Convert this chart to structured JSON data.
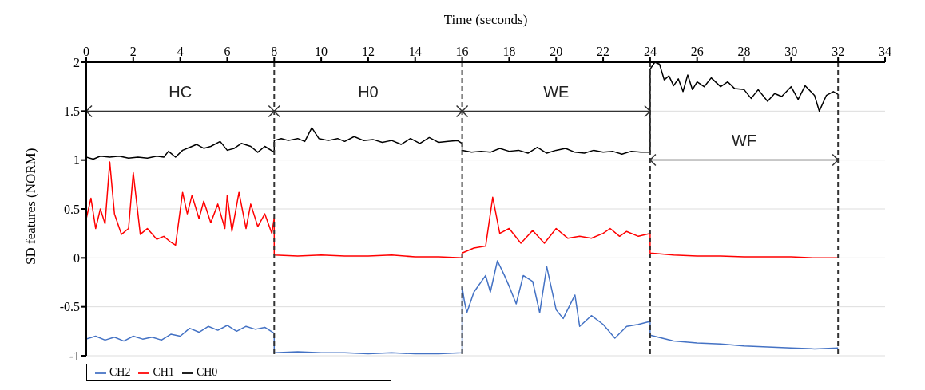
{
  "chart_data": {
    "type": "line",
    "xlabel": "Time (seconds)",
    "ylabel": "SD features (NORM)",
    "xlim": [
      0,
      34
    ],
    "xticks": [
      0,
      2,
      4,
      6,
      8,
      10,
      12,
      14,
      16,
      18,
      20,
      22,
      24,
      26,
      28,
      30,
      32,
      34
    ],
    "ylim": [
      -1,
      2
    ],
    "yticks": [
      -1,
      -0.5,
      0,
      0.5,
      1,
      1.5,
      2
    ],
    "grid": "y",
    "legend": "bottom left",
    "marker": "none",
    "line_style": "solid",
    "series": [
      {
        "name": "CH2",
        "color": "#4472c4",
        "x": [
          0,
          0.4,
          0.8,
          1.2,
          1.6,
          2,
          2.4,
          2.8,
          3.2,
          3.6,
          4,
          4.4,
          4.8,
          5.2,
          5.6,
          6,
          6.4,
          6.8,
          7.2,
          7.6,
          8,
          8,
          9,
          10,
          11,
          12,
          13,
          14,
          15,
          16,
          16,
          16.1,
          16.2,
          16.5,
          17,
          17.2,
          17.5,
          17.8,
          18,
          18.3,
          18.6,
          19,
          19.3,
          19.6,
          20,
          20.3,
          20.8,
          21,
          21.5,
          22,
          22.5,
          23,
          23.5,
          24,
          24,
          25,
          26,
          27,
          28,
          29,
          30,
          31,
          32
        ],
        "values": [
          -0.83,
          -0.8,
          -0.84,
          -0.81,
          -0.85,
          -0.8,
          -0.83,
          -0.81,
          -0.84,
          -0.78,
          -0.8,
          -0.72,
          -0.76,
          -0.7,
          -0.74,
          -0.69,
          -0.75,
          -0.7,
          -0.73,
          -0.71,
          -0.77,
          -0.97,
          -0.96,
          -0.97,
          -0.97,
          -0.98,
          -0.97,
          -0.98,
          -0.98,
          -0.97,
          -0.3,
          -0.45,
          -0.56,
          -0.35,
          -0.18,
          -0.35,
          -0.03,
          -0.18,
          -0.29,
          -0.47,
          -0.18,
          -0.24,
          -0.56,
          -0.09,
          -0.53,
          -0.62,
          -0.38,
          -0.7,
          -0.59,
          -0.68,
          -0.82,
          -0.7,
          -0.68,
          -0.65,
          -0.79,
          -0.85,
          -0.87,
          -0.88,
          -0.9,
          -0.91,
          -0.92,
          -0.93,
          -0.92
        ]
      },
      {
        "name": "CH1",
        "color": "#ff0000",
        "x": [
          0,
          0.2,
          0.4,
          0.6,
          0.8,
          1,
          1.2,
          1.5,
          1.8,
          2,
          2.3,
          2.6,
          3,
          3.3,
          3.6,
          3.8,
          4.1,
          4.3,
          4.5,
          4.8,
          5,
          5.3,
          5.6,
          5.9,
          6,
          6.2,
          6.5,
          6.8,
          7,
          7.3,
          7.6,
          7.9,
          8,
          8,
          9,
          10,
          11,
          12,
          13,
          14,
          15,
          16,
          16,
          16.5,
          17,
          17.3,
          17.6,
          18,
          18.5,
          19,
          19.5,
          20,
          20.5,
          21,
          21.5,
          22,
          22.3,
          22.7,
          23,
          23.5,
          24,
          24,
          25,
          26,
          27,
          28,
          29,
          30,
          31,
          32
        ],
        "values": [
          0.4,
          0.61,
          0.3,
          0.5,
          0.35,
          0.98,
          0.45,
          0.24,
          0.3,
          0.87,
          0.24,
          0.3,
          0.19,
          0.22,
          0.16,
          0.13,
          0.67,
          0.45,
          0.64,
          0.4,
          0.58,
          0.36,
          0.55,
          0.3,
          0.64,
          0.27,
          0.67,
          0.3,
          0.55,
          0.32,
          0.45,
          0.25,
          0.41,
          0.03,
          0.02,
          0.03,
          0.02,
          0.02,
          0.03,
          0.01,
          0.01,
          0.0,
          0.05,
          0.1,
          0.12,
          0.62,
          0.25,
          0.3,
          0.15,
          0.28,
          0.15,
          0.3,
          0.2,
          0.22,
          0.2,
          0.25,
          0.3,
          0.22,
          0.27,
          0.22,
          0.25,
          0.05,
          0.03,
          0.02,
          0.02,
          0.01,
          0.01,
          0.01,
          0.0,
          0.0
        ]
      },
      {
        "name": "CH0",
        "color": "#000000",
        "x": [
          0,
          0.3,
          0.6,
          1,
          1.4,
          1.8,
          2.2,
          2.6,
          3,
          3.3,
          3.5,
          3.8,
          4.1,
          4.4,
          4.7,
          5,
          5.3,
          5.7,
          6,
          6.3,
          6.6,
          7,
          7.3,
          7.6,
          8,
          8,
          8.3,
          8.6,
          9,
          9.3,
          9.6,
          9.9,
          10.3,
          10.7,
          11,
          11.4,
          11.8,
          12.2,
          12.6,
          13,
          13.4,
          13.8,
          14.2,
          14.6,
          15,
          15.4,
          15.8,
          16,
          16,
          16.4,
          16.8,
          17.2,
          17.6,
          18,
          18.4,
          18.8,
          19.2,
          19.6,
          20,
          20.4,
          20.8,
          21.2,
          21.6,
          22,
          22.4,
          22.8,
          23.2,
          23.6,
          24,
          24,
          24.2,
          24.4,
          24.6,
          24.8,
          25,
          25.2,
          25.4,
          25.6,
          25.8,
          26,
          26.3,
          26.6,
          27,
          27.3,
          27.6,
          28,
          28.3,
          28.6,
          29,
          29.3,
          29.6,
          30,
          30.3,
          30.6,
          31,
          31.2,
          31.5,
          31.8,
          32
        ],
        "values": [
          1.03,
          1.01,
          1.04,
          1.03,
          1.04,
          1.02,
          1.03,
          1.02,
          1.04,
          1.03,
          1.09,
          1.03,
          1.1,
          1.13,
          1.16,
          1.12,
          1.14,
          1.19,
          1.1,
          1.12,
          1.17,
          1.14,
          1.08,
          1.14,
          1.08,
          1.2,
          1.22,
          1.2,
          1.22,
          1.19,
          1.33,
          1.22,
          1.2,
          1.22,
          1.19,
          1.24,
          1.2,
          1.21,
          1.18,
          1.2,
          1.16,
          1.22,
          1.17,
          1.23,
          1.18,
          1.19,
          1.2,
          1.17,
          1.1,
          1.08,
          1.09,
          1.08,
          1.12,
          1.09,
          1.1,
          1.07,
          1.13,
          1.07,
          1.1,
          1.12,
          1.08,
          1.07,
          1.1,
          1.08,
          1.09,
          1.06,
          1.09,
          1.08,
          1.08,
          1.93,
          2.0,
          1.98,
          1.82,
          1.86,
          1.76,
          1.83,
          1.7,
          1.87,
          1.72,
          1.8,
          1.75,
          1.84,
          1.75,
          1.8,
          1.73,
          1.72,
          1.63,
          1.72,
          1.6,
          1.68,
          1.65,
          1.75,
          1.62,
          1.76,
          1.66,
          1.5,
          1.66,
          1.7,
          1.67
        ]
      }
    ],
    "ref_lines": [
      {
        "axis": "x",
        "value": 8,
        "color": "#333333",
        "line_style": "dashed"
      },
      {
        "axis": "x",
        "value": 16,
        "color": "#333333",
        "line_style": "dashed"
      },
      {
        "axis": "x",
        "value": 24,
        "color": "#333333",
        "line_style": "dashed"
      },
      {
        "axis": "x",
        "value": 32,
        "color": "#333333",
        "line_style": "dashed"
      }
    ],
    "annotations": [
      "HC",
      "H0",
      "WE",
      "WF"
    ]
  }
}
